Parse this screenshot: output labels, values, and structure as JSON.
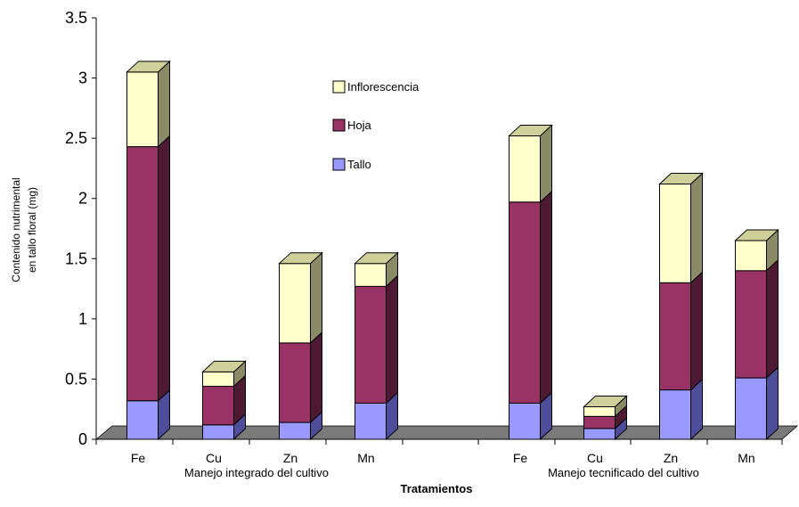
{
  "chart_data": {
    "type": "bar",
    "stacked": true,
    "three_d": true,
    "title": "",
    "xlabel": "Tratamientos",
    "ylabel_lines": [
      "Contenido nutrimental",
      "en tallo floral (mg)"
    ],
    "ylim": [
      0,
      3.5
    ],
    "yticks": [
      "0",
      "0.5",
      "1",
      "1.5",
      "2",
      "2.5",
      "3",
      "3.5"
    ],
    "grid": false,
    "legend_position": "center-top",
    "groups": [
      {
        "name": "Manejo integrado del cultivo",
        "categories": [
          "Fe",
          "Cu",
          "Zn",
          "Mn"
        ]
      },
      {
        "name": "Manejo tecnificado del cultivo",
        "categories": [
          "Fe",
          "Cu",
          "Zn",
          "Mn"
        ]
      }
    ],
    "categories": [
      "Fe",
      "Cu",
      "Zn",
      "Mn",
      "Fe",
      "Cu",
      "Zn",
      "Mn"
    ],
    "series": [
      {
        "name": "Tallo",
        "color": "#9999ff",
        "values": [
          0.32,
          0.12,
          0.14,
          0.3,
          0.3,
          0.09,
          0.41,
          0.51
        ]
      },
      {
        "name": "Hoja",
        "color": "#993366",
        "values": [
          2.11,
          0.32,
          0.66,
          0.97,
          1.67,
          0.1,
          0.89,
          0.89
        ]
      },
      {
        "name": "Inflorescencia",
        "color": "#ffffcc",
        "values": [
          0.62,
          0.12,
          0.66,
          0.19,
          0.55,
          0.08,
          0.82,
          0.25
        ]
      }
    ]
  }
}
